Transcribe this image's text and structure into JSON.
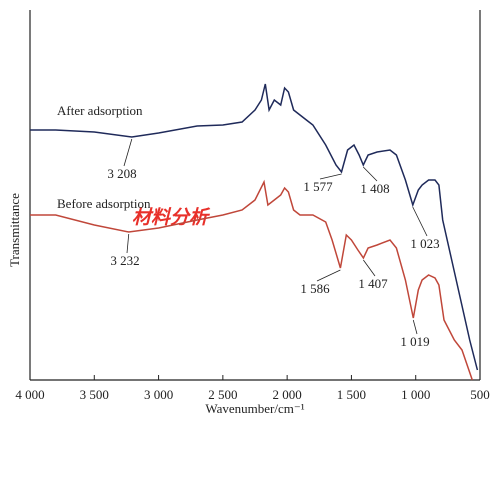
{
  "chart_data": {
    "type": "line",
    "x_label": "Wavenumber/cm⁻¹",
    "y_label": "Transmittance",
    "xlim": [
      4000,
      500
    ],
    "ylim": [
      0,
      370
    ],
    "xticks": [
      {
        "value": 4000,
        "label": "4 000"
      },
      {
        "value": 3500,
        "label": "3 500"
      },
      {
        "value": 3000,
        "label": "3 000"
      },
      {
        "value": 2500,
        "label": "2 500"
      },
      {
        "value": 2000,
        "label": "2 000"
      },
      {
        "value": 1500,
        "label": "1 500"
      },
      {
        "value": 1000,
        "label": "1 000"
      },
      500
    ],
    "series": [
      {
        "name": "After adsorption",
        "color": "#1f2a5a",
        "x": [
          4000,
          3800,
          3500,
          3208,
          3000,
          2700,
          2500,
          2350,
          2250,
          2200,
          2170,
          2140,
          2100,
          2050,
          2020,
          1990,
          1950,
          1900,
          1850,
          1800,
          1700,
          1620,
          1577,
          1530,
          1480,
          1440,
          1408,
          1370,
          1300,
          1200,
          1150,
          1080,
          1023,
          980,
          950,
          900,
          850,
          820,
          790,
          720,
          650,
          580,
          520
        ],
        "values": [
          250,
          250,
          248,
          243,
          247,
          254,
          255,
          258,
          270,
          280,
          296,
          270,
          280,
          275,
          292,
          288,
          270,
          265,
          260,
          255,
          235,
          215,
          208,
          230,
          235,
          225,
          215,
          225,
          228,
          230,
          225,
          200,
          175,
          190,
          195,
          200,
          200,
          195,
          160,
          120,
          80,
          40,
          10
        ]
      },
      {
        "name": "Before adsorption",
        "color": "#c0473a",
        "x": [
          4000,
          3800,
          3500,
          3232,
          3000,
          2700,
          2500,
          2350,
          2250,
          2180,
          2150,
          2100,
          2050,
          2020,
          1990,
          1950,
          1900,
          1800,
          1700,
          1650,
          1586,
          1540,
          1500,
          1450,
          1407,
          1370,
          1300,
          1200,
          1150,
          1080,
          1019,
          980,
          950,
          900,
          850,
          820,
          780,
          700,
          640,
          560
        ],
        "values": [
          165,
          165,
          155,
          148,
          152,
          160,
          165,
          170,
          180,
          198,
          175,
          180,
          185,
          192,
          188,
          170,
          165,
          165,
          158,
          140,
          112,
          145,
          140,
          130,
          122,
          132,
          135,
          140,
          132,
          100,
          62,
          90,
          100,
          105,
          102,
          95,
          60,
          40,
          30,
          0
        ]
      }
    ],
    "annotations": [
      "3 208",
      "1 577",
      "1 408",
      "1 023",
      "3 232",
      "1 586",
      "1 407",
      "1 019"
    ],
    "watermark": "材料分析"
  }
}
